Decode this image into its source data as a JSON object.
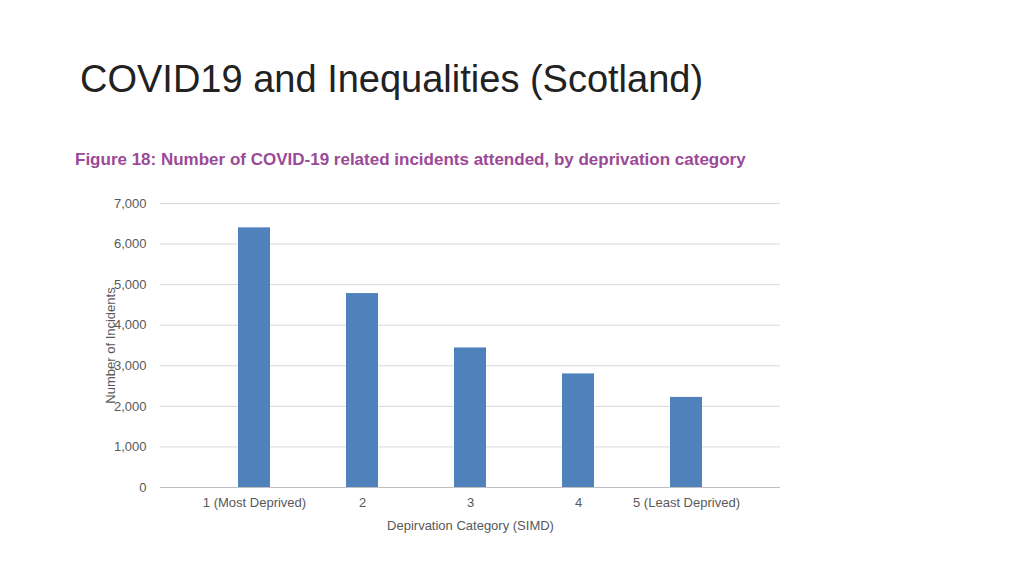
{
  "chart_data": {
    "type": "bar",
    "title": "COVID19 and Inequalities (Scotland)",
    "subtitle": "Figure 18: Number of COVID-19 related incidents attended, by deprivation category",
    "x_label": "Depirvation Category (SIMD)",
    "y_label": "Number of Incidents",
    "categories": [
      "1 (Most Deprived)",
      "2",
      "3",
      "4",
      "5 (Least Deprived)"
    ],
    "values": [
      6400,
      4780,
      3440,
      2800,
      2220
    ],
    "color": "#4f81bd",
    "ylim": [
      0,
      7000
    ],
    "yticks": [
      0,
      {
        "value": 1000,
        "label": "1,000"
      },
      {
        "value": 2000,
        "label": "2,000"
      },
      {
        "value": 3000,
        "label": "3,000"
      },
      {
        "value": 4000,
        "label": "4,000"
      },
      {
        "value": 5000,
        "label": "5,000"
      },
      {
        "value": 6000,
        "label": "6,000"
      },
      {
        "value": 7000,
        "label": "7,000"
      }
    ],
    "grid": true
  }
}
